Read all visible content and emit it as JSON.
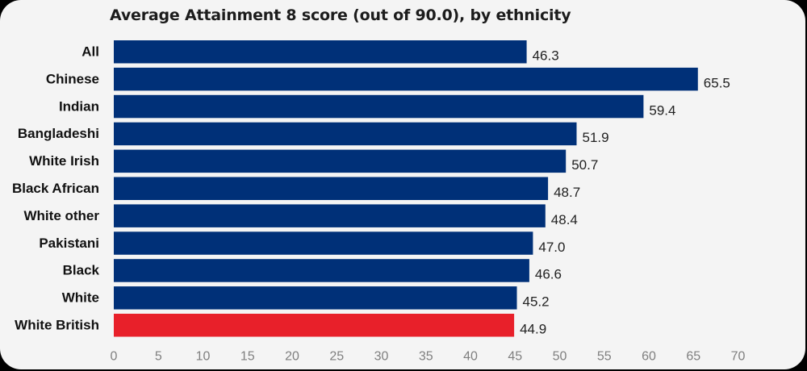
{
  "chart_data": {
    "type": "bar",
    "orientation": "horizontal",
    "title": "Average Attainment 8 score (out of 90.0), by ethnicity",
    "categories": [
      "All",
      "Chinese",
      "Indian",
      "Bangladeshi",
      "White Irish",
      "Black African",
      "White other",
      "Pakistani",
      "Black",
      "White",
      "White British"
    ],
    "values": [
      46.3,
      65.5,
      59.4,
      51.9,
      50.7,
      48.7,
      48.4,
      47.0,
      46.6,
      45.2,
      44.9
    ],
    "value_labels": [
      "46.3",
      "65.5",
      "59.4",
      "51.9",
      "50.7",
      "48.7",
      "48.4",
      "47.0",
      "46.6",
      "45.2",
      "44.9"
    ],
    "highlight_category": "White British",
    "xlabel": "",
    "ylabel": "",
    "xlim": [
      0,
      70
    ],
    "xticks": [
      0,
      5,
      10,
      15,
      20,
      25,
      30,
      35,
      40,
      45,
      50,
      55,
      60,
      65,
      70
    ],
    "grid": false,
    "legend": false,
    "colors": {
      "bar": "#003078",
      "highlight": "#e8202a",
      "background": "#f4f4f4"
    }
  }
}
